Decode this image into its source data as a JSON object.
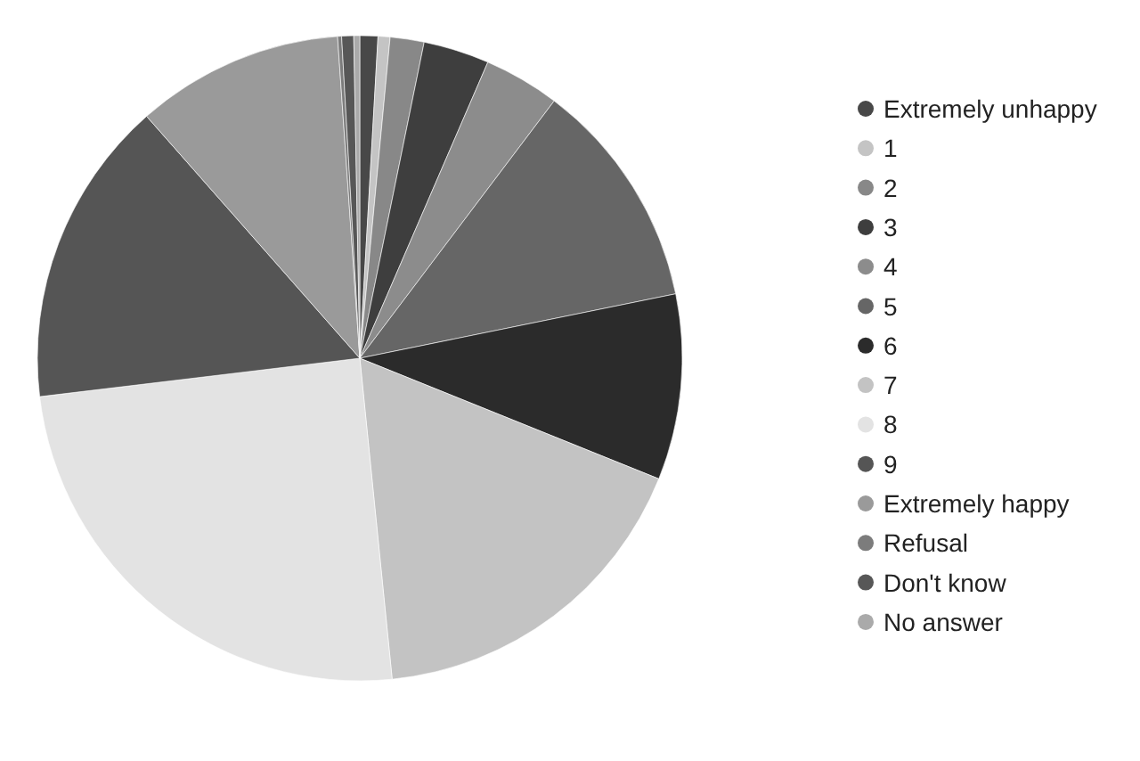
{
  "chart_data": {
    "type": "pie",
    "categories": [
      "Extremely unhappy",
      "1",
      "2",
      "3",
      "4",
      "5",
      "6",
      "7",
      "8",
      "9",
      "Extremely happy",
      "Refusal",
      "Don't know",
      "No answer"
    ],
    "values": [
      0.9,
      0.6,
      1.7,
      3.3,
      3.8,
      11.5,
      9.3,
      17.3,
      24.7,
      15.4,
      10.4,
      0.2,
      0.6,
      0.3
    ],
    "colors": [
      "#484848",
      "#c4c4c4",
      "#888888",
      "#3e3e3e",
      "#8c8c8c",
      "#666666",
      "#2b2b2b",
      "#c3c3c3",
      "#e3e3e3",
      "#555555",
      "#9a9a9a",
      "#7c7c7c",
      "#575757",
      "#aaaaaa"
    ],
    "legend": "right"
  }
}
